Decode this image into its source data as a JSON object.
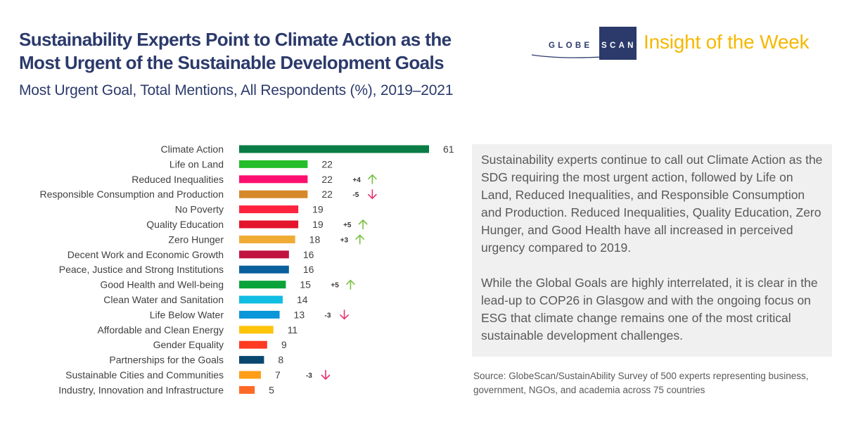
{
  "header": {
    "title_line1": "Sustainability Experts Point to Climate Action as the",
    "title_line2": "Most Urgent of the Sustainable Development Goals",
    "subtitle": "Most Urgent Goal, Total Mentions, All Respondents (%), 2019–2021",
    "logo_text_left": "GLOBE",
    "logo_text_right": "SCAN",
    "tagline": "Insight of the Week"
  },
  "colors": {
    "title": "#2b3a6b",
    "tagline": "#f5b800",
    "up_arrow": "#7ac143",
    "down_arrow": "#e8336e"
  },
  "chart_data": {
    "type": "bar",
    "orientation": "horizontal",
    "title": "Most Urgent Goal, Total Mentions, All Respondents (%), 2019–2021",
    "xlabel": "",
    "ylabel": "",
    "xlim": [
      0,
      61
    ],
    "grid": false,
    "categories": [
      "Climate Action",
      "Life on Land",
      "Reduced Inequalities",
      "Responsible Consumption and Production",
      "No Poverty",
      "Quality Education",
      "Zero Hunger",
      "Decent Work and Economic Growth",
      "Peace, Justice and Strong Institutions",
      "Good Health and Well-being",
      "Clean Water and Sanitation",
      "Life Below Water",
      "Affordable and Clean Energy",
      "Gender Equality",
      "Partnerships for the Goals",
      "Sustainable Cities and Communities",
      "Industry, Innovation and Infrastructure"
    ],
    "values": [
      61,
      22,
      22,
      22,
      19,
      19,
      18,
      16,
      16,
      15,
      14,
      13,
      11,
      9,
      8,
      7,
      5
    ],
    "colors": [
      "#0a7c45",
      "#26bd2a",
      "#fc0f6e",
      "#d6892a",
      "#fe223f",
      "#e3162d",
      "#f0ab35",
      "#c1153f",
      "#0a609c",
      "#0aa33a",
      "#10bde3",
      "#0a96d8",
      "#fdc40a",
      "#fe3a22",
      "#0a4870",
      "#fe9d16",
      "#fe6a25"
    ],
    "change_vs_2019": [
      null,
      null,
      "+4",
      "-5",
      null,
      "+5",
      "+3",
      null,
      null,
      "+5",
      null,
      "-3",
      null,
      null,
      null,
      "-3",
      null
    ],
    "change_direction": [
      null,
      null,
      "up",
      "down",
      null,
      "up",
      "up",
      null,
      null,
      "up",
      null,
      "down",
      null,
      null,
      null,
      "down",
      null
    ]
  },
  "commentary": {
    "paragraph1": "Sustainability experts continue to call out Climate Action as the SDG requiring the most urgent action, followed by Life on Land, Reduced Inequalities, and Responsible Consumption and Production. Reduced Inequalities, Quality Education, Zero Hunger, and Good Health have all increased in perceived urgency compared to 2019.",
    "paragraph2": "While the Global Goals are highly interrelated, it is clear in the lead-up to COP26 in Glasgow and with the ongoing focus on ESG that climate change remains one of the most critical sustainable development challenges."
  },
  "source": "Source: GlobeScan/SustainAbility Survey of 500 experts representing business, government, NGOs, and academia across 75 countries"
}
